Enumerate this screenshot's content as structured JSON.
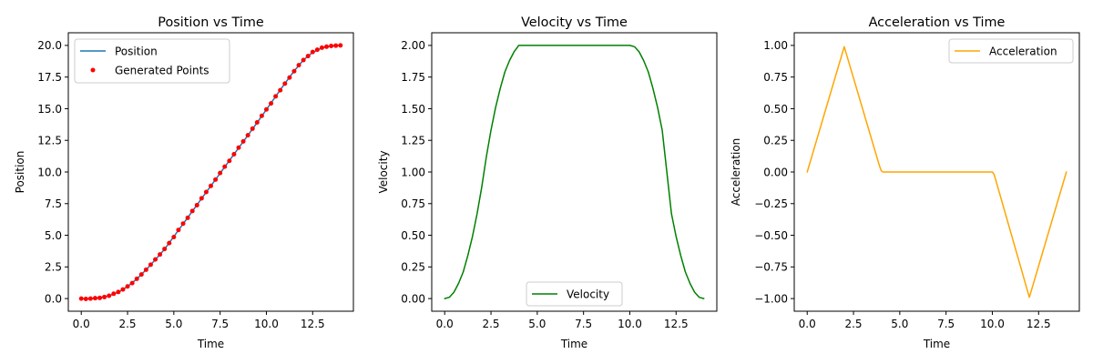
{
  "colors": {
    "position": "#1f77b4",
    "generated_points": "#ff0000",
    "velocity": "#008000",
    "acceleration": "#ffa500"
  },
  "chart_data": [
    {
      "type": "line",
      "title": "Position vs Time",
      "xlabel": "Time",
      "ylabel": "Position",
      "xlim": [
        -0.7,
        14.7
      ],
      "ylim": [
        -1.0,
        21.0
      ],
      "xticks": [
        0.0,
        2.5,
        5.0,
        7.5,
        10.0,
        12.5
      ],
      "xtick_labels": [
        "0.0",
        "2.5",
        "5.0",
        "7.5",
        "10.0",
        "12.5"
      ],
      "yticks": [
        0.0,
        2.5,
        5.0,
        7.5,
        10.0,
        12.5,
        15.0,
        17.5,
        20.0
      ],
      "ytick_labels": [
        "0.0",
        "2.5",
        "5.0",
        "7.5",
        "10.0",
        "12.5",
        "15.0",
        "17.5",
        "20.0"
      ],
      "legend": {
        "placement": "top-left",
        "entries": [
          "Position",
          "Generated Points"
        ]
      },
      "grid": false,
      "series": [
        {
          "name": "Position",
          "kind": "line",
          "color": "#1f77b4",
          "x": [
            0,
            0.5,
            1,
            1.5,
            2,
            2.5,
            3,
            3.5,
            4,
            4.5,
            5,
            5.5,
            6,
            6.5,
            7,
            7.5,
            8,
            8.5,
            9,
            9.5,
            10,
            10.5,
            11,
            11.5,
            12,
            12.5,
            13,
            13.5,
            14
          ],
          "y": [
            0,
            0.01,
            0.07,
            0.22,
            0.5,
            0.95,
            1.55,
            2.27,
            3.07,
            3.9,
            4.9,
            5.9,
            6.9,
            7.9,
            8.9,
            9.9,
            10.9,
            11.9,
            12.9,
            13.9,
            14.93,
            15.97,
            17.0,
            17.98,
            18.85,
            19.45,
            19.8,
            19.96,
            20.0
          ]
        },
        {
          "name": "Generated Points",
          "kind": "scatter",
          "color": "#ff0000",
          "x": [
            0,
            0.25,
            0.5,
            0.75,
            1,
            1.25,
            1.5,
            1.75,
            2,
            2.25,
            2.5,
            2.75,
            3,
            3.25,
            3.5,
            3.75,
            4,
            4.25,
            4.5,
            4.75,
            5,
            5.25,
            5.5,
            5.75,
            6,
            6.25,
            6.5,
            6.75,
            7,
            7.25,
            7.5,
            7.75,
            8,
            8.25,
            8.5,
            8.75,
            9,
            9.25,
            9.5,
            9.75,
            10,
            10.25,
            10.5,
            10.75,
            11,
            11.25,
            11.5,
            11.75,
            12,
            12.25,
            12.5,
            12.75,
            13,
            13.25,
            13.5,
            13.75,
            14
          ],
          "y": [
            0.0,
            -0.03,
            0.0,
            0.03,
            0.05,
            0.12,
            0.22,
            0.38,
            0.52,
            0.72,
            0.96,
            1.22,
            1.56,
            1.9,
            2.28,
            2.68,
            3.09,
            3.48,
            3.92,
            4.38,
            4.86,
            5.42,
            5.92,
            6.38,
            6.92,
            7.38,
            7.92,
            8.42,
            8.9,
            9.4,
            9.92,
            10.42,
            10.88,
            11.4,
            11.92,
            12.42,
            12.9,
            13.42,
            13.92,
            14.44,
            14.94,
            15.42,
            15.98,
            16.46,
            16.98,
            17.46,
            17.96,
            18.44,
            18.84,
            19.16,
            19.48,
            19.66,
            19.82,
            19.9,
            19.96,
            19.98,
            20.0
          ]
        }
      ]
    },
    {
      "type": "line",
      "title": "Velocity vs Time",
      "xlabel": "Time",
      "ylabel": "Velocity",
      "xlim": [
        -0.7,
        14.7
      ],
      "ylim": [
        -0.1,
        2.1
      ],
      "xticks": [
        0.0,
        2.5,
        5.0,
        7.5,
        10.0,
        12.5
      ],
      "xtick_labels": [
        "0.0",
        "2.5",
        "5.0",
        "7.5",
        "10.0",
        "12.5"
      ],
      "yticks": [
        0.0,
        0.25,
        0.5,
        0.75,
        1.0,
        1.25,
        1.5,
        1.75,
        2.0
      ],
      "ytick_labels": [
        "0.00",
        "0.25",
        "0.50",
        "0.75",
        "1.00",
        "1.25",
        "1.50",
        "1.75",
        "2.00"
      ],
      "legend": {
        "placement": "bottom-center",
        "entries": [
          "Velocity"
        ]
      },
      "grid": false,
      "series": [
        {
          "name": "Velocity",
          "kind": "line",
          "color": "#008000",
          "x": [
            0,
            0.25,
            0.5,
            0.75,
            1,
            1.25,
            1.5,
            1.75,
            2,
            2.25,
            2.5,
            2.75,
            3,
            3.25,
            3.5,
            3.75,
            4,
            5,
            6,
            7,
            8,
            9,
            10,
            10.25,
            10.5,
            10.75,
            11,
            11.25,
            11.5,
            11.75,
            12,
            12.25,
            12.5,
            12.75,
            13,
            13.25,
            13.5,
            13.75,
            14
          ],
          "y": [
            0,
            0.01,
            0.05,
            0.12,
            0.21,
            0.34,
            0.49,
            0.67,
            0.88,
            1.12,
            1.33,
            1.51,
            1.66,
            1.79,
            1.88,
            1.95,
            2.0,
            2.0,
            2.0,
            2.0,
            2.0,
            2.0,
            2.0,
            1.99,
            1.95,
            1.88,
            1.79,
            1.66,
            1.51,
            1.33,
            1.0,
            0.67,
            0.49,
            0.34,
            0.21,
            0.12,
            0.05,
            0.01,
            0.0
          ]
        }
      ]
    },
    {
      "type": "line",
      "title": "Acceleration vs Time",
      "xlabel": "Time",
      "ylabel": "Acceleration",
      "xlim": [
        -0.7,
        14.7
      ],
      "ylim": [
        -1.1,
        1.1
      ],
      "xticks": [
        0.0,
        2.5,
        5.0,
        7.5,
        10.0,
        12.5
      ],
      "xtick_labels": [
        "0.0",
        "2.5",
        "5.0",
        "7.5",
        "10.0",
        "12.5"
      ],
      "yticks": [
        -1.0,
        -0.75,
        -0.5,
        -0.25,
        0.0,
        0.25,
        0.5,
        0.75,
        1.0
      ],
      "ytick_labels": [
        "−1.00",
        "−0.75",
        "−0.50",
        "−0.25",
        "0.00",
        "0.25",
        "0.50",
        "0.75",
        "1.00"
      ],
      "legend": {
        "placement": "top-right",
        "entries": [
          "Acceleration"
        ]
      },
      "grid": false,
      "series": [
        {
          "name": "Acceleration",
          "kind": "line",
          "color": "#ffa500",
          "x": [
            0,
            2,
            3.9,
            4.0,
            4.1,
            10,
            10.1,
            12,
            14
          ],
          "y": [
            0,
            0.99,
            0.05,
            0.01,
            0,
            0,
            -0.02,
            -0.99,
            0
          ]
        }
      ]
    }
  ]
}
